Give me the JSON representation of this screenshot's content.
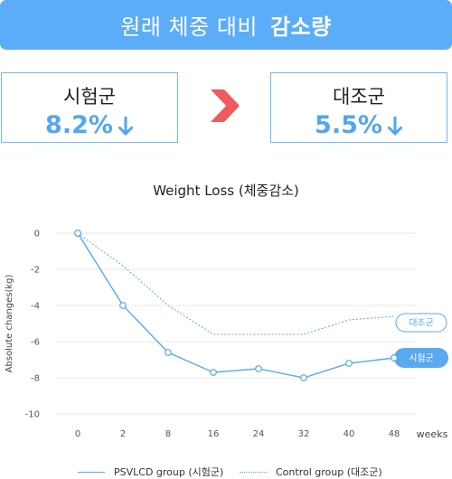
{
  "banner": {
    "title": "원래 체중 대비",
    "title_bold": "감소량"
  },
  "compare": {
    "left": {
      "label": "시험군",
      "value": "8.2%"
    },
    "right": {
      "label": "대조군",
      "value": "5.5%"
    }
  },
  "colors": {
    "accent": "#5cadf8",
    "arrow": "#f05a5a",
    "treatment": "#5aa8ee",
    "control": "#5aa8ee"
  },
  "chart_data": {
    "type": "line",
    "title": "Weight Loss (체중감소)",
    "ylabel": "Absolute changes(kg)",
    "xlabel": "weeks",
    "categories": [
      "0",
      "2",
      "8",
      "16",
      "24",
      "32",
      "40",
      "48"
    ],
    "ylim": [
      -10,
      0
    ],
    "yticks": [
      "0",
      "-2",
      "-4",
      "-6",
      "-8",
      "-10"
    ],
    "legend_position": "bottom",
    "grid": true,
    "series": [
      {
        "name": "PSVLCD group (시험군)",
        "tag": "시험군",
        "style": "solid",
        "values": [
          0,
          -4.0,
          -6.6,
          -7.7,
          -7.5,
          -8.0,
          -7.2,
          -6.9
        ]
      },
      {
        "name": "Control group (대조군)",
        "tag": "대조군",
        "style": "dotted",
        "values": [
          0,
          -1.8,
          -4.0,
          -5.6,
          -5.6,
          -5.6,
          -4.8,
          -4.6
        ]
      }
    ]
  }
}
